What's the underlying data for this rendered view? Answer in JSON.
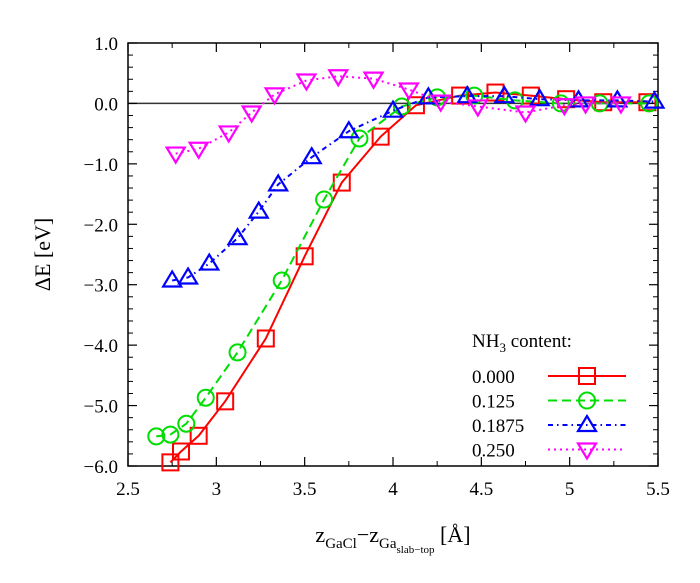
{
  "chart_data": {
    "type": "line",
    "title": "",
    "xlabel": {
      "main": "z",
      "sub1": "GaCl",
      "minus": "−z",
      "sub2": "Ga",
      "subsub": "slab−top",
      "unit": " [Å]"
    },
    "ylabel": "ΔE [eV]",
    "xlim": [
      2.5,
      5.5
    ],
    "ylim": [
      -6.0,
      1.0
    ],
    "xticks": [
      "2.5",
      "3",
      "3.5",
      "4",
      "4.5",
      "5",
      "5.5"
    ],
    "xtick_values": [
      2.5,
      3,
      3.5,
      4,
      4.5,
      5,
      5.5
    ],
    "yticks": [
      "1.0",
      "0.0",
      "−1.0",
      "−2.0",
      "−3.0",
      "−4.0",
      "−5.0",
      "−6.0"
    ],
    "ytick_values": [
      1,
      0,
      -1,
      -2,
      -3,
      -4,
      -5,
      -6
    ],
    "legend": {
      "title_main": "NH",
      "title_sub": "3",
      "title_rest": " content:",
      "placement": "bottom-right"
    },
    "series": [
      {
        "name": "0.000",
        "color": "#ff0000",
        "marker": "square",
        "dash": "",
        "x": [
          2.74,
          2.8,
          2.9,
          3.05,
          3.28,
          3.5,
          3.71,
          3.93,
          4.13,
          4.38,
          4.58,
          4.78,
          4.98,
          5.19,
          5.44
        ],
        "y": [
          -5.94,
          -5.76,
          -5.5,
          -4.93,
          -3.89,
          -2.53,
          -1.31,
          -0.55,
          -0.03,
          0.13,
          0.18,
          0.13,
          0.07,
          0.02,
          0.02
        ]
      },
      {
        "name": "0.125",
        "color": "#00dd00",
        "marker": "circle",
        "dash": "9,5",
        "x": [
          2.66,
          2.74,
          2.83,
          2.94,
          3.12,
          3.37,
          3.61,
          3.81,
          4.05,
          4.25,
          4.46,
          4.69,
          4.95,
          5.17,
          5.45
        ],
        "y": [
          -5.51,
          -5.48,
          -5.3,
          -4.87,
          -4.12,
          -2.93,
          -1.59,
          -0.58,
          -0.05,
          0.1,
          0.13,
          0.05,
          0.0,
          0.0,
          0.0
        ]
      },
      {
        "name": "0.1875",
        "color": "#0000ff",
        "marker": "triangle-up",
        "dash": "5,4,1.5,4",
        "x": [
          2.75,
          2.84,
          2.96,
          3.12,
          3.24,
          3.35,
          3.54,
          3.75,
          4.0,
          4.2,
          4.42,
          4.63,
          4.83,
          5.05,
          5.27,
          5.48
        ],
        "y": [
          -2.93,
          -2.88,
          -2.65,
          -2.23,
          -1.79,
          -1.34,
          -0.89,
          -0.46,
          -0.12,
          0.1,
          0.12,
          0.12,
          0.07,
          0.05,
          0.05,
          0.03
        ]
      },
      {
        "name": "0.250",
        "color": "#ff00ff",
        "marker": "triangle-down",
        "dash": "2,4",
        "x": [
          2.77,
          2.9,
          3.07,
          3.2,
          3.33,
          3.51,
          3.69,
          3.89,
          4.09,
          4.27,
          4.48,
          4.75,
          4.97,
          5.09,
          5.29
        ],
        "y": [
          -0.83,
          -0.75,
          -0.48,
          -0.15,
          0.15,
          0.38,
          0.45,
          0.41,
          0.23,
          0.03,
          -0.05,
          -0.15,
          -0.03,
          0.0,
          0.0
        ]
      }
    ]
  }
}
